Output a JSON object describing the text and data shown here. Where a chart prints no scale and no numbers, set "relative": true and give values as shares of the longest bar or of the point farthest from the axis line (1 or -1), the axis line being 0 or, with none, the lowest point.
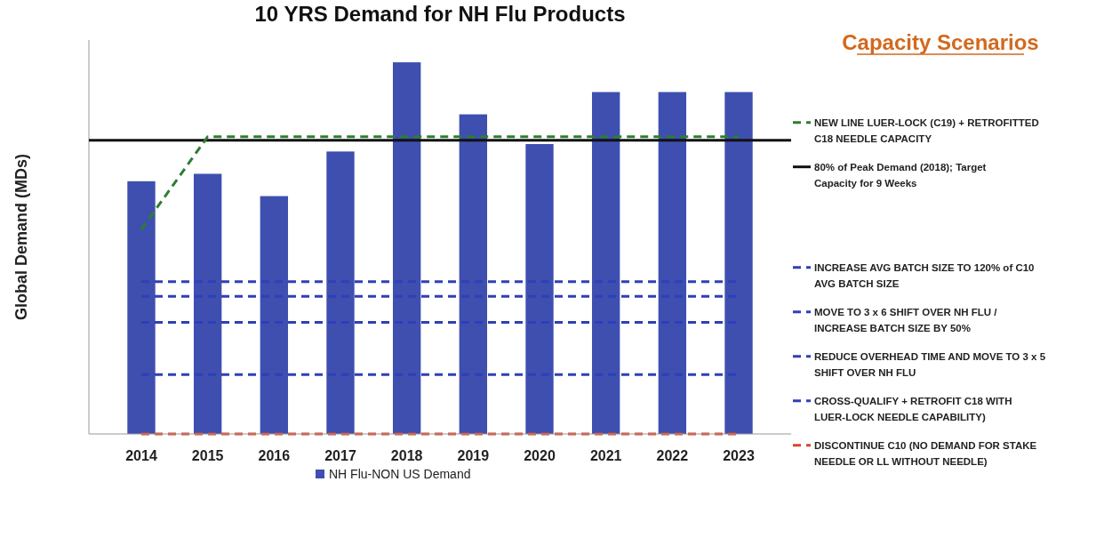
{
  "chart_data": {
    "type": "bar",
    "title": "10 YRS Demand for NH Flu Products",
    "ylabel": "Global Demand (MDs)",
    "legend_title": "Capacity Scenarios",
    "relative": true,
    "legend": "bottom",
    "marker": "none",
    "line_style": "dashed",
    "categories": [
      "2014",
      "2015",
      "2016",
      "2017",
      "2018",
      "2019",
      "2020",
      "2021",
      "2022",
      "2023"
    ],
    "series": [
      {
        "name": "NH Flu-NON US Demand",
        "color": "#3f4fb0",
        "values": [
          0.68,
          0.7,
          0.64,
          0.76,
          1,
          0.86,
          0.78,
          0.92,
          0.92,
          0.92
        ]
      },
      {
        "type": "line",
        "name": "NEW LINE LUER-LOCK (C19) + RETROFITTED C18 NEEDLE CAPACITY",
        "color": "#2e7d32",
        "values": [
          0.55,
          0.8,
          0.8,
          0.8,
          0.8,
          0.8,
          0.8,
          0.8,
          0.8,
          0.8
        ]
      },
      {
        "type": "line",
        "name": "INCREASE AVG BATCH SIZE TO 120% of C10 AVG BATCH SIZE",
        "color": "#2f3fb8",
        "values": [
          0.41,
          0.41,
          0.41,
          0.41,
          0.41,
          0.41,
          0.41,
          0.41,
          0.41,
          0.41
        ]
      },
      {
        "type": "line",
        "name": "MOVE TO 3 x 6 SHIFT OVER NH FLU / INCREASE BATCH SIZE BY 50%",
        "color": "#2f3fb8",
        "values": [
          0.37,
          0.37,
          0.37,
          0.37,
          0.37,
          0.37,
          0.37,
          0.37,
          0.37,
          0.37
        ]
      },
      {
        "type": "line",
        "name": "REDUCE OVERHEAD TIME AND MOVE TO 3 x 5 SHIFT OVER NH FLU",
        "color": "#2f3fb8",
        "values": [
          0.3,
          0.3,
          0.3,
          0.3,
          0.3,
          0.3,
          0.3,
          0.3,
          0.3,
          0.3
        ]
      },
      {
        "type": "line",
        "name": "CROSS-QUALIFY + RETROFIT C18 WITH LUER-LOCK NEEDLE CAPABILITY)",
        "color": "#2f3fb8",
        "values": [
          0.16,
          0.16,
          0.16,
          0.16,
          0.16,
          0.16,
          0.16,
          0.16,
          0.16,
          0.16
        ]
      },
      {
        "type": "line",
        "name": "DISCONTINUE C10 (NO DEMAND FOR STAKE NEEDLE OR LL WITHOUT NEEDLE)",
        "color": "#d9452b",
        "values": [
          0,
          0,
          0,
          0,
          0,
          0,
          0,
          0,
          0,
          0
        ]
      }
    ],
    "ref_lines": [
      {
        "axis": "y",
        "value": 0.79,
        "label": "80% of Peak Demand (2018); Target Capacity for 9 Weeks",
        "color": "#111111",
        "line_style": "solid"
      }
    ]
  }
}
